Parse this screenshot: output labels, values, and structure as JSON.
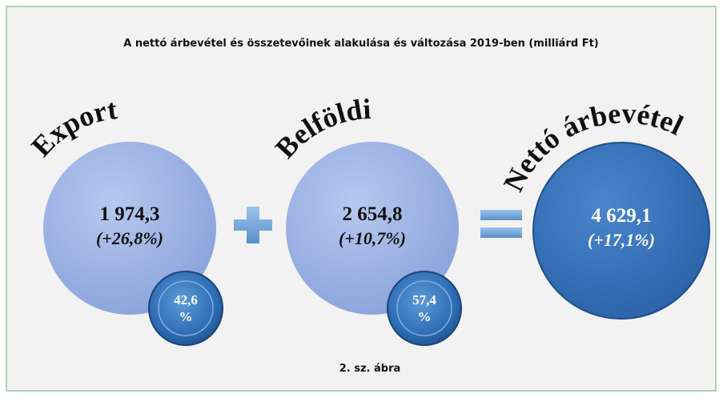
{
  "title": "A nettó árbevétel és összetevőinek alakulása és változása 2019-ben (milliárd Ft)",
  "items": [
    {
      "label": "Export",
      "value": "1 974,3",
      "change": "(+26,8%)",
      "share": [
        "42,6",
        "%"
      ]
    },
    {
      "label": "Belföldi",
      "value": "2 654,8",
      "change": "(+10,7%)",
      "share": [
        "57,4",
        "%"
      ]
    }
  ],
  "total": {
    "label": "Nettó árbevétel",
    "value": "4 629,1",
    "change": "(+17,1%)"
  },
  "caption": "2. sz. ábra"
}
